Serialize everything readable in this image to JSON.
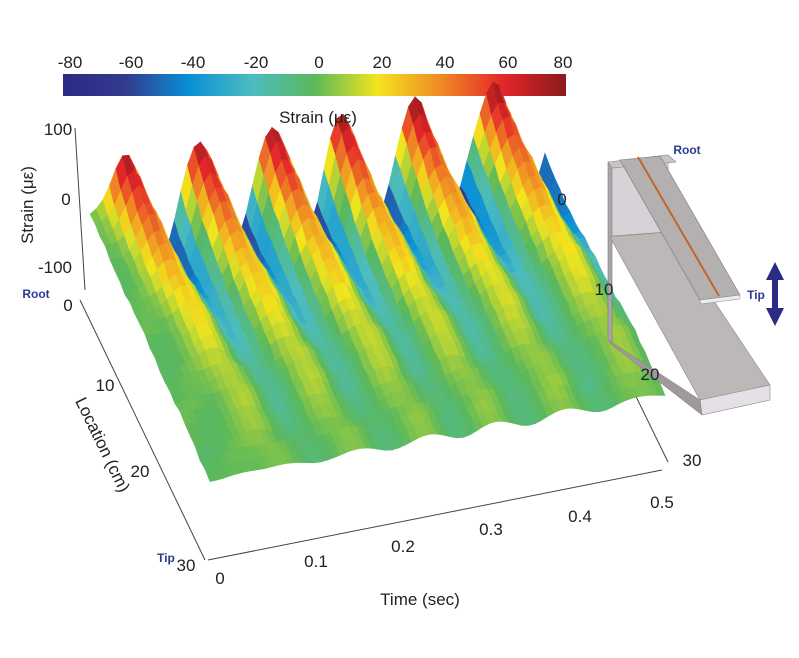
{
  "chart_data": {
    "type": "surface",
    "colorbar": {
      "label": "Strain (με)",
      "ticks": [
        "-80",
        "-60",
        "-40",
        "-20",
        "0",
        "20",
        "40",
        "60",
        "80"
      ],
      "range": [
        -80,
        80
      ],
      "colors": [
        "#2b2a84",
        "#333a8e",
        "#0a8fd6",
        "#4cbcc0",
        "#5bb85b",
        "#f2e51e",
        "#f08a24",
        "#e4262a",
        "#8b1a1a"
      ]
    },
    "xlabel": "Time (sec)",
    "xticks": [
      "0",
      "0.1",
      "0.2",
      "0.3",
      "0.4",
      "0.5"
    ],
    "xlim": [
      0,
      0.5
    ],
    "ylabel": "Location (cm)",
    "yticks_left": [
      "0",
      "10",
      "20",
      "30"
    ],
    "yticks_right": [
      "0",
      "10",
      "20",
      "30"
    ],
    "ylim": [
      0,
      30
    ],
    "zlabel": "Strain (με)",
    "zticks": [
      "100",
      "0",
      "-100"
    ],
    "zlim": [
      -100,
      100
    ],
    "root_label": "Root",
    "tip_label": "Tip",
    "ridge_peak_times_sec": [
      0.04,
      0.12,
      0.2,
      0.275,
      0.357,
      0.445
    ],
    "peak_strain_at_root": 80
  },
  "illustration": {
    "root_label": "Root",
    "tip_label": "Tip"
  }
}
